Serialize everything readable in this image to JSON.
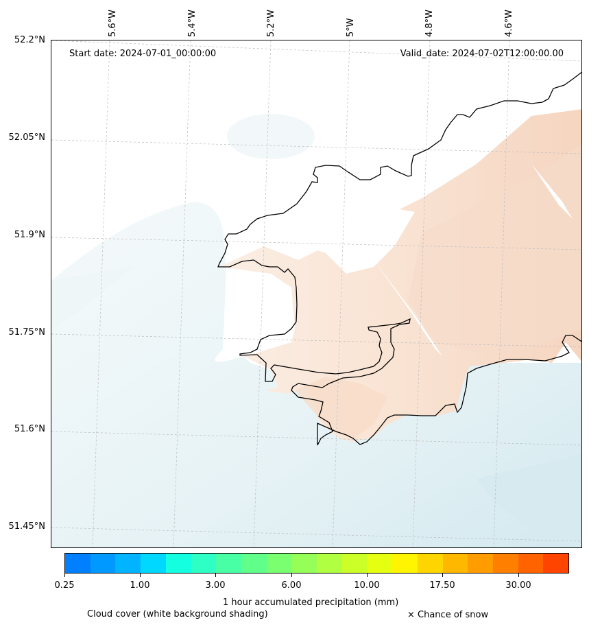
{
  "map": {
    "start_date": "Start date: 2024-07-01_00:00:00",
    "valid_date": "Valid_date: 2024-07-02T12:00:00.00",
    "lat_labels": [
      "52.2°N",
      "52.05°N",
      "51.9°N",
      "51.75°N",
      "51.6°N",
      "51.45°N"
    ],
    "lon_labels": [
      "5.6°W",
      "5.4°W",
      "5.2°W",
      "5°W",
      "4.8°W",
      "4.6°W"
    ],
    "colors": {
      "coastline": "#000000",
      "land_shade": "#f9e3d3",
      "land_shade_dark": "#f5d2bb",
      "sea_shade": "#e4f1f5",
      "sea_shade_dark": "#d3e9ef",
      "gridline": "#bbbbbb"
    }
  },
  "colorbar": {
    "colors": [
      "#0080ff",
      "#0099ff",
      "#00b4ff",
      "#00d8ff",
      "#14ffe0",
      "#2effc4",
      "#48ffa6",
      "#5fff8a",
      "#7aff70",
      "#95ff58",
      "#b0ff40",
      "#ccff28",
      "#e6ff10",
      "#fff500",
      "#ffd500",
      "#ffb800",
      "#ff9c00",
      "#ff7f00",
      "#ff6300",
      "#ff4400"
    ],
    "tick_labels": [
      "0.25",
      "1.00",
      "3.00",
      "6.00",
      "10.00",
      "17.50",
      "30.00"
    ],
    "title": "1 hour accumulated precipitation (mm)"
  },
  "captions": {
    "cloud_cover": "Cloud cover (white background shading)",
    "snow": "× Chance of snow"
  }
}
